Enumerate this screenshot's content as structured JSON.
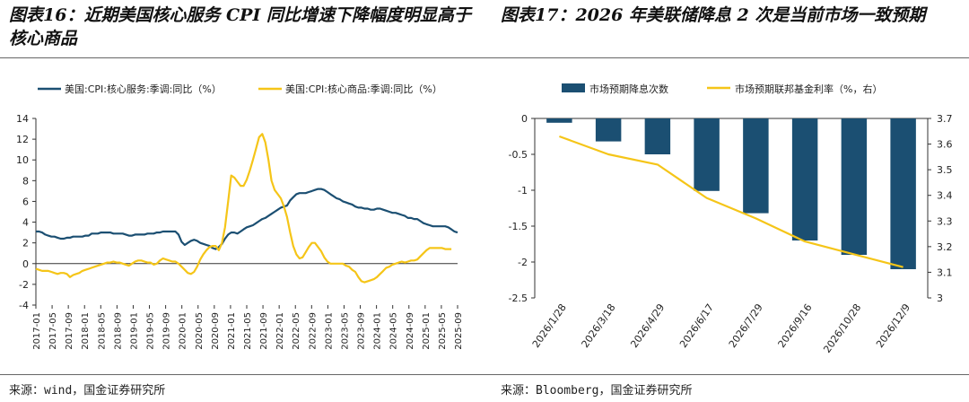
{
  "titles": {
    "chart1": "图表16：近期美国核心服务 CPI 同比增速下降幅度明显高于核心商品",
    "chart2": "图表17：2026 年美联储降息 2 次是当前市场一致预期"
  },
  "sources": {
    "chart1": "来源：wind，国金证券研究所",
    "chart2": "来源：Bloomberg，国金证券研究所"
  },
  "colors": {
    "navy": "#1b4f72",
    "gold": "#f5c518"
  },
  "chart_data": [
    {
      "type": "line",
      "title": "",
      "x_labels": [
        "2017-01",
        "2017-05",
        "2017-09",
        "2018-01",
        "2018-05",
        "2018-09",
        "2019-01",
        "2019-05",
        "2019-09",
        "2020-01",
        "2020-05",
        "2020-09",
        "2021-01",
        "2021-05",
        "2021-09",
        "2022-01",
        "2022-05",
        "2022-09",
        "2023-01",
        "2023-05",
        "2023-09",
        "2024-01",
        "2024-05",
        "2024-09",
        "2025-01",
        "2025-05",
        "2025-09"
      ],
      "ylim": [
        -4,
        14
      ],
      "yticks": [
        -4,
        -2,
        0,
        2,
        4,
        6,
        8,
        10,
        12,
        14
      ],
      "series": [
        {
          "name": "美国:CPI:核心服务:季调:同比（%）",
          "color": "#1b4f72",
          "values": [
            3.1,
            3.1,
            3.0,
            2.8,
            2.7,
            2.6,
            2.6,
            2.5,
            2.4,
            2.4,
            2.5,
            2.5,
            2.6,
            2.6,
            2.6,
            2.6,
            2.7,
            2.7,
            2.9,
            2.9,
            2.9,
            3.0,
            3.0,
            3.0,
            3.0,
            2.9,
            2.9,
            2.9,
            2.9,
            2.8,
            2.7,
            2.7,
            2.8,
            2.8,
            2.8,
            2.8,
            2.9,
            2.9,
            2.9,
            3.0,
            3.0,
            3.1,
            3.1,
            3.1,
            3.1,
            3.1,
            2.8,
            2.1,
            1.8,
            2.0,
            2.2,
            2.3,
            2.2,
            2.0,
            1.9,
            1.8,
            1.7,
            1.5,
            1.4,
            1.6,
            1.9,
            2.4,
            2.8,
            3.0,
            3.0,
            2.9,
            3.1,
            3.3,
            3.5,
            3.6,
            3.7,
            3.9,
            4.1,
            4.3,
            4.4,
            4.6,
            4.8,
            5.0,
            5.2,
            5.4,
            5.5,
            5.6,
            6.1,
            6.4,
            6.7,
            6.8,
            6.8,
            6.8,
            6.9,
            7.0,
            7.1,
            7.2,
            7.2,
            7.1,
            6.9,
            6.7,
            6.5,
            6.3,
            6.2,
            6.0,
            5.9,
            5.8,
            5.7,
            5.5,
            5.4,
            5.4,
            5.3,
            5.3,
            5.2,
            5.2,
            5.3,
            5.3,
            5.2,
            5.1,
            5.0,
            4.9,
            4.9,
            4.8,
            4.7,
            4.6,
            4.4,
            4.4,
            4.3,
            4.3,
            4.1,
            3.9,
            3.8,
            3.7,
            3.6,
            3.6,
            3.6,
            3.6,
            3.6,
            3.5,
            3.3,
            3.1,
            3.0
          ]
        },
        {
          "name": "美国:CPI:核心商品:季调:同比（%）",
          "color": "#f5c518",
          "values": [
            -0.5,
            -0.6,
            -0.7,
            -0.7,
            -0.7,
            -0.8,
            -0.9,
            -1.0,
            -0.9,
            -0.9,
            -1.0,
            -1.3,
            -1.1,
            -1.0,
            -0.9,
            -0.7,
            -0.6,
            -0.5,
            -0.4,
            -0.3,
            -0.2,
            -0.1,
            0.0,
            0.1,
            0.1,
            0.2,
            0.1,
            0.1,
            0.0,
            -0.1,
            -0.2,
            0.0,
            0.2,
            0.3,
            0.3,
            0.2,
            0.1,
            0.1,
            -0.1,
            0.0,
            0.3,
            0.5,
            0.4,
            0.3,
            0.2,
            0.2,
            0.0,
            -0.3,
            -0.6,
            -0.9,
            -1.0,
            -0.8,
            -0.3,
            0.4,
            0.9,
            1.3,
            1.6,
            1.7,
            1.7,
            1.3,
            2.0,
            3.5,
            6.0,
            8.5,
            8.3,
            7.9,
            7.5,
            7.5,
            8.1,
            9.0,
            10.0,
            11.1,
            12.2,
            12.5,
            11.7,
            10.0,
            8.0,
            7.1,
            6.7,
            6.3,
            5.5,
            4.5,
            3.0,
            1.7,
            0.9,
            0.5,
            0.6,
            1.1,
            1.6,
            2.0,
            2.0,
            1.6,
            1.2,
            0.6,
            0.2,
            0.0,
            0.0,
            0.0,
            0.0,
            0.0,
            -0.2,
            -0.3,
            -0.6,
            -0.8,
            -1.3,
            -1.7,
            -1.8,
            -1.7,
            -1.6,
            -1.5,
            -1.3,
            -1.0,
            -0.7,
            -0.4,
            -0.3,
            -0.1,
            0.0,
            0.1,
            0.2,
            0.1,
            0.2,
            0.3,
            0.3,
            0.4,
            0.7,
            1.0,
            1.3,
            1.5,
            1.5,
            1.5,
            1.5,
            1.5,
            1.4,
            1.4,
            1.4
          ]
        }
      ]
    },
    {
      "type": "bar",
      "title": "",
      "categories": [
        "2026/1/28",
        "2026/3/18",
        "2026/4/29",
        "2026/6/17",
        "2026/7/29",
        "2026/9/16",
        "2026/10/28",
        "2026/12/9"
      ],
      "ylim": [
        -2.5,
        0
      ],
      "yticks": [
        0,
        -0.5,
        -1,
        -1.5,
        -2,
        -2.5
      ],
      "ylim_right": [
        3.0,
        3.7
      ],
      "yticks_right": [
        3.7,
        3.6,
        3.5,
        3.4,
        3.3,
        3.2,
        3.1,
        3
      ],
      "series": [
        {
          "name": "市场预期降息次数",
          "type": "bar",
          "axis": "left",
          "color": "#1b4f72",
          "values": [
            -0.06,
            -0.32,
            -0.5,
            -1.01,
            -1.32,
            -1.7,
            -1.9,
            -2.1
          ]
        },
        {
          "name": "市场预期联邦基金利率（%，右）",
          "type": "line",
          "axis": "right",
          "color": "#f5c518",
          "values": [
            3.63,
            3.56,
            3.52,
            3.39,
            3.31,
            3.22,
            3.17,
            3.12
          ]
        }
      ]
    }
  ]
}
